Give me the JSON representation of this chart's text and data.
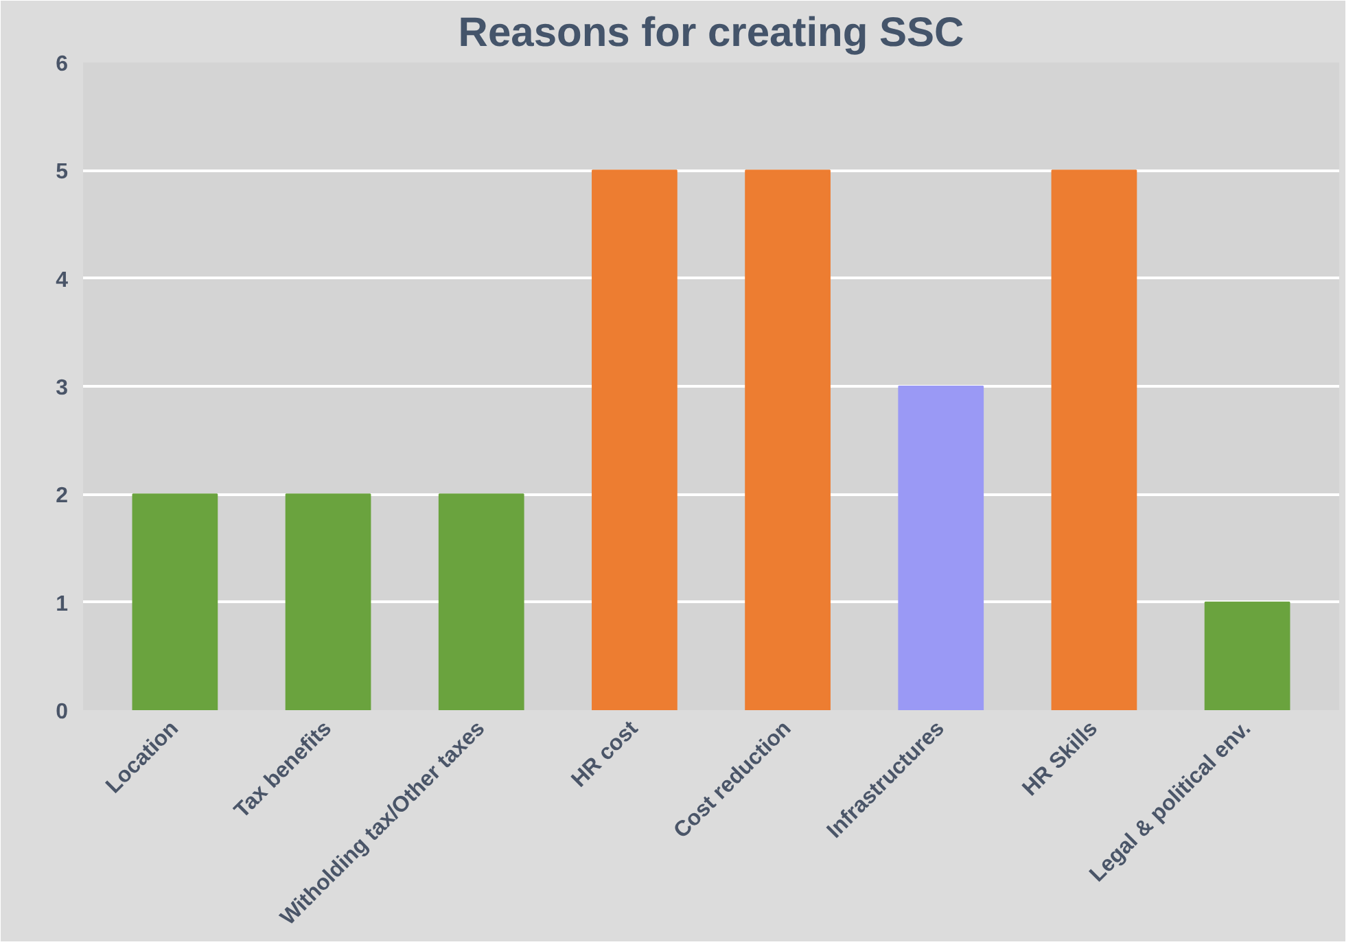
{
  "chart_data": {
    "type": "bar",
    "title": "Reasons for creating SSC",
    "categories": [
      "Location",
      "Tax benefits",
      "Witholding tax/Other taxes",
      "HR cost",
      "Cost reduction",
      "Infrastructures",
      "HR Skills",
      "Legal & political env."
    ],
    "values": [
      2,
      2,
      2,
      5,
      5,
      3,
      5,
      1
    ],
    "colors": [
      "#6aa33e",
      "#6aa33e",
      "#6aa33e",
      "#ed7d31",
      "#ed7d31",
      "#9a99f5",
      "#ed7d31",
      "#6aa33e"
    ],
    "ylim": [
      0,
      6
    ],
    "yticks": [
      0,
      1,
      2,
      3,
      4,
      5,
      6
    ],
    "grid": "y"
  }
}
